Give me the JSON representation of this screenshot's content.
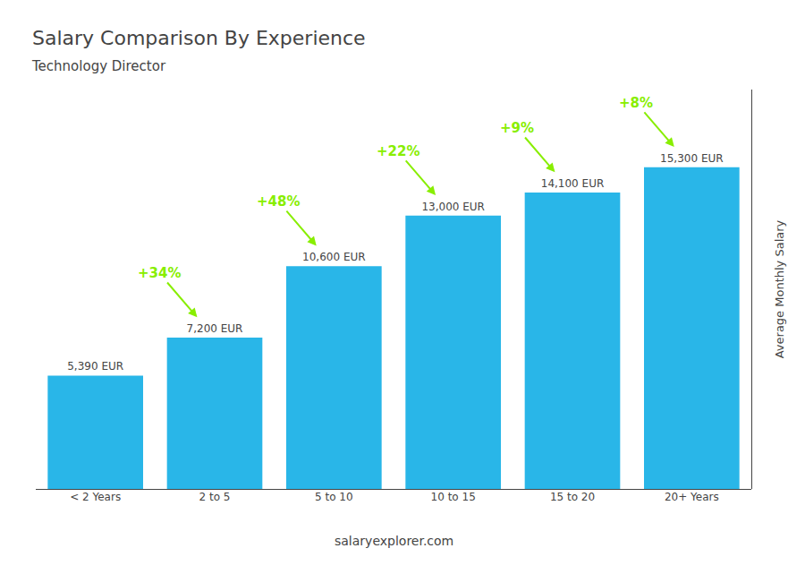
{
  "chart_data": {
    "type": "bar",
    "title": "Salary Comparison By Experience",
    "subtitle": "Technology Director",
    "ylabel": "Average Monthly Salary",
    "categories": [
      "< 2 Years",
      "2 to 5",
      "5 to 10",
      "10 to 15",
      "15 to 20",
      "20+ Years"
    ],
    "values": [
      5390,
      7200,
      10600,
      13000,
      14100,
      15300
    ],
    "value_labels": [
      "5,390 EUR",
      "7,200 EUR",
      "10,600 EUR",
      "13,000 EUR",
      "14,100 EUR",
      "15,300 EUR"
    ],
    "data_labels": true,
    "color": "#29b6e8",
    "annotations": [
      {
        "text": "+34%",
        "color": "#88ee00"
      },
      {
        "text": "+48%",
        "color": "#88ee00"
      },
      {
        "text": "+22%",
        "color": "#88ee00"
      },
      {
        "text": "+9%",
        "color": "#88ee00"
      },
      {
        "text": "+8%",
        "color": "#88ee00"
      }
    ],
    "watermark": "salaryexplorer.com",
    "ylim": [
      0,
      19000
    ],
    "tick_labels": "x",
    "grid": false
  }
}
